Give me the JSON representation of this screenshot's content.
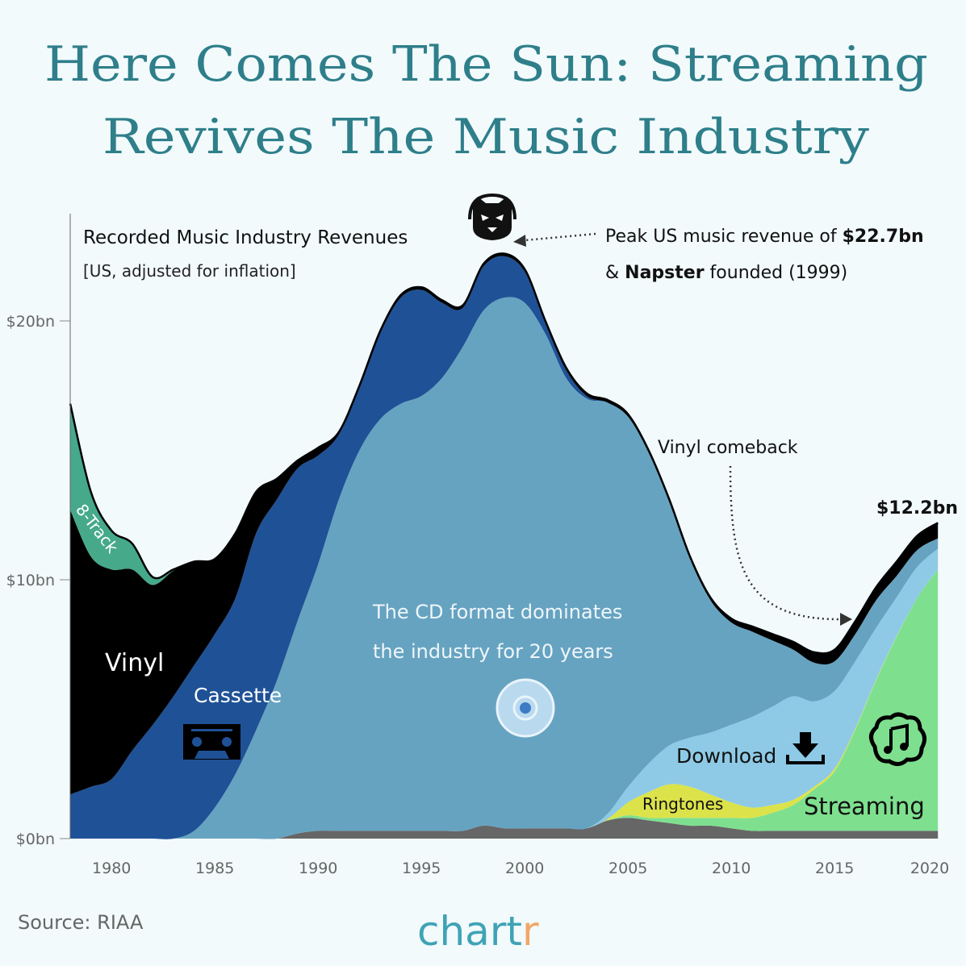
{
  "title_line1": "Here Comes The Sun: Streaming",
  "title_line2": "Revives The Music Industry",
  "subtitle": "Recorded Music Industry Revenues",
  "subtitle_note": "[US, adjusted for inflation]",
  "source": "Source: RIAA",
  "logo": "chartr",
  "chart_data": {
    "type": "area",
    "stacked": true,
    "title": "Recorded Music Industry Revenues",
    "subtitle": "[US, adjusted for inflation]",
    "xlabel": "",
    "ylabel": "",
    "xlim": [
      1978,
      2020
    ],
    "ylim": [
      0,
      23
    ],
    "x_ticks": [
      1980,
      1985,
      1990,
      1995,
      2000,
      2005,
      2010,
      2015,
      2020
    ],
    "y_ticks": [
      {
        "value": 0,
        "label": "$0bn"
      },
      {
        "value": 10,
        "label": "$10bn"
      },
      {
        "value": 20,
        "label": "$20bn"
      }
    ],
    "grid": false,
    "legend": "inline labels",
    "x": [
      1978,
      1979,
      1980,
      1981,
      1982,
      1983,
      1984,
      1985,
      1986,
      1987,
      1988,
      1989,
      1990,
      1991,
      1992,
      1993,
      1994,
      1995,
      1996,
      1997,
      1998,
      1999,
      2000,
      2001,
      2002,
      2003,
      2004,
      2005,
      2006,
      2007,
      2008,
      2009,
      2010,
      2011,
      2012,
      2013,
      2014,
      2015,
      2016,
      2017,
      2018,
      2019,
      2020
    ],
    "series": [
      {
        "key": "other",
        "color": "#666666",
        "values": [
          0,
          0,
          0,
          0,
          0,
          0,
          0,
          0,
          0,
          0,
          0,
          0.2,
          0.3,
          0.3,
          0.3,
          0.3,
          0.3,
          0.3,
          0.3,
          0.3,
          0.5,
          0.4,
          0.4,
          0.4,
          0.4,
          0.4,
          0.7,
          0.8,
          0.7,
          0.6,
          0.5,
          0.5,
          0.4,
          0.3,
          0.3,
          0.3,
          0.3,
          0.3,
          0.3,
          0.3,
          0.3,
          0.3,
          0.3
        ]
      },
      {
        "key": "streaming",
        "name": "Streaming",
        "color": "#7ee08f",
        "values": [
          0,
          0,
          0,
          0,
          0,
          0,
          0,
          0,
          0,
          0,
          0,
          0,
          0,
          0,
          0,
          0,
          0,
          0,
          0,
          0,
          0,
          0,
          0,
          0,
          0,
          0,
          0,
          0.1,
          0.1,
          0.2,
          0.3,
          0.3,
          0.4,
          0.5,
          0.7,
          1.0,
          1.6,
          2.3,
          3.9,
          5.8,
          7.5,
          9.0,
          10.1
        ]
      },
      {
        "key": "ringtones",
        "name": "Ringtones",
        "color": "#dce34a",
        "values": [
          0,
          0,
          0,
          0,
          0,
          0,
          0,
          0,
          0,
          0,
          0,
          0,
          0,
          0,
          0,
          0,
          0,
          0,
          0,
          0,
          0,
          0,
          0,
          0,
          0,
          0,
          0.05,
          0.5,
          1.0,
          1.3,
          1.2,
          0.9,
          0.6,
          0.4,
          0.3,
          0.2,
          0.1,
          0.1,
          0.05,
          0.03,
          0.02,
          0,
          0
        ]
      },
      {
        "key": "download",
        "name": "Download",
        "color": "#8ecae6",
        "values": [
          0,
          0,
          0,
          0,
          0,
          0,
          0,
          0,
          0,
          0,
          0,
          0,
          0,
          0,
          0,
          0,
          0,
          0,
          0,
          0,
          0,
          0,
          0,
          0,
          0,
          0,
          0.2,
          0.6,
          1.1,
          1.5,
          1.9,
          2.4,
          3.0,
          3.5,
          3.8,
          4.0,
          3.3,
          3.0,
          2.6,
          2.0,
          1.5,
          1.2,
          0.8
        ]
      },
      {
        "key": "cd",
        "color": "#66a3c1",
        "values": [
          0,
          0,
          0,
          0,
          0,
          0,
          0.3,
          1.2,
          2.5,
          4.2,
          6.1,
          8.2,
          10.3,
          12.8,
          14.7,
          15.9,
          16.5,
          16.8,
          17.5,
          18.7,
          19.9,
          20.5,
          20.3,
          19.1,
          17.4,
          16.6,
          15.9,
          14.3,
          12.0,
          9.4,
          6.9,
          5.1,
          3.95,
          3.3,
          2.55,
          1.8,
          1.5,
          1.15,
          1.05,
          1.07,
          0.83,
          0.65,
          0.4
        ]
      },
      {
        "key": "cassette",
        "name": "Cassette",
        "color": "#1f5196",
        "values": [
          1.7,
          2.0,
          2.3,
          3.4,
          4.4,
          5.5,
          6.4,
          6.7,
          6.8,
          7.6,
          7.0,
          5.9,
          4.2,
          2.5,
          2.4,
          3.3,
          4.1,
          4.1,
          2.9,
          1.5,
          1.7,
          1.6,
          1.2,
          0.4,
          0.3,
          0.1,
          0,
          0,
          0,
          0,
          0,
          0,
          0,
          0,
          0,
          0,
          0,
          0,
          0,
          0,
          0,
          0,
          0
        ]
      },
      {
        "key": "vinyl",
        "name": "Vinyl",
        "color": "#000000",
        "values": [
          11.0,
          8.9,
          8.1,
          7.0,
          5.4,
          4.85,
          4.0,
          2.9,
          2.5,
          1.6,
          0.8,
          0.3,
          0.3,
          0.1,
          0.1,
          0.1,
          0.1,
          0.1,
          0.1,
          0.1,
          0.1,
          0.1,
          0.1,
          0.1,
          0.1,
          0.1,
          0.1,
          0.1,
          0.1,
          0.1,
          0.1,
          0.1,
          0.15,
          0.2,
          0.25,
          0.3,
          0.4,
          0.45,
          0.5,
          0.5,
          0.55,
          0.55,
          0.6
        ]
      },
      {
        "key": "eight_track",
        "name": "8-Track",
        "color": "#45a98a",
        "values": [
          4.1,
          2.5,
          1.5,
          1.0,
          0.3,
          0.05,
          0,
          0,
          0,
          0,
          0,
          0,
          0,
          0,
          0,
          0,
          0,
          0,
          0,
          0,
          0,
          0,
          0,
          0,
          0,
          0,
          0,
          0,
          0,
          0,
          0,
          0,
          0,
          0,
          0,
          0,
          0,
          0,
          0,
          0,
          0,
          0,
          0
        ]
      }
    ],
    "annotations": {
      "peak_line1_pre": "Peak US music revenue of ",
      "peak_line1_value": "$22.7bn",
      "peak_line2_pre": "& ",
      "peak_line2_bold": "Napster",
      "peak_line2_post": " founded (1999)",
      "cd_line1": "The CD format dominates",
      "cd_line2": "the industry for 20 years",
      "vinyl_comeback": "Vinyl comeback",
      "final_value": "$12.2bn"
    }
  },
  "icons": [
    "napster-cat-icon",
    "cassette-icon",
    "cd-icon",
    "download-icon",
    "cloud-music-icon"
  ]
}
